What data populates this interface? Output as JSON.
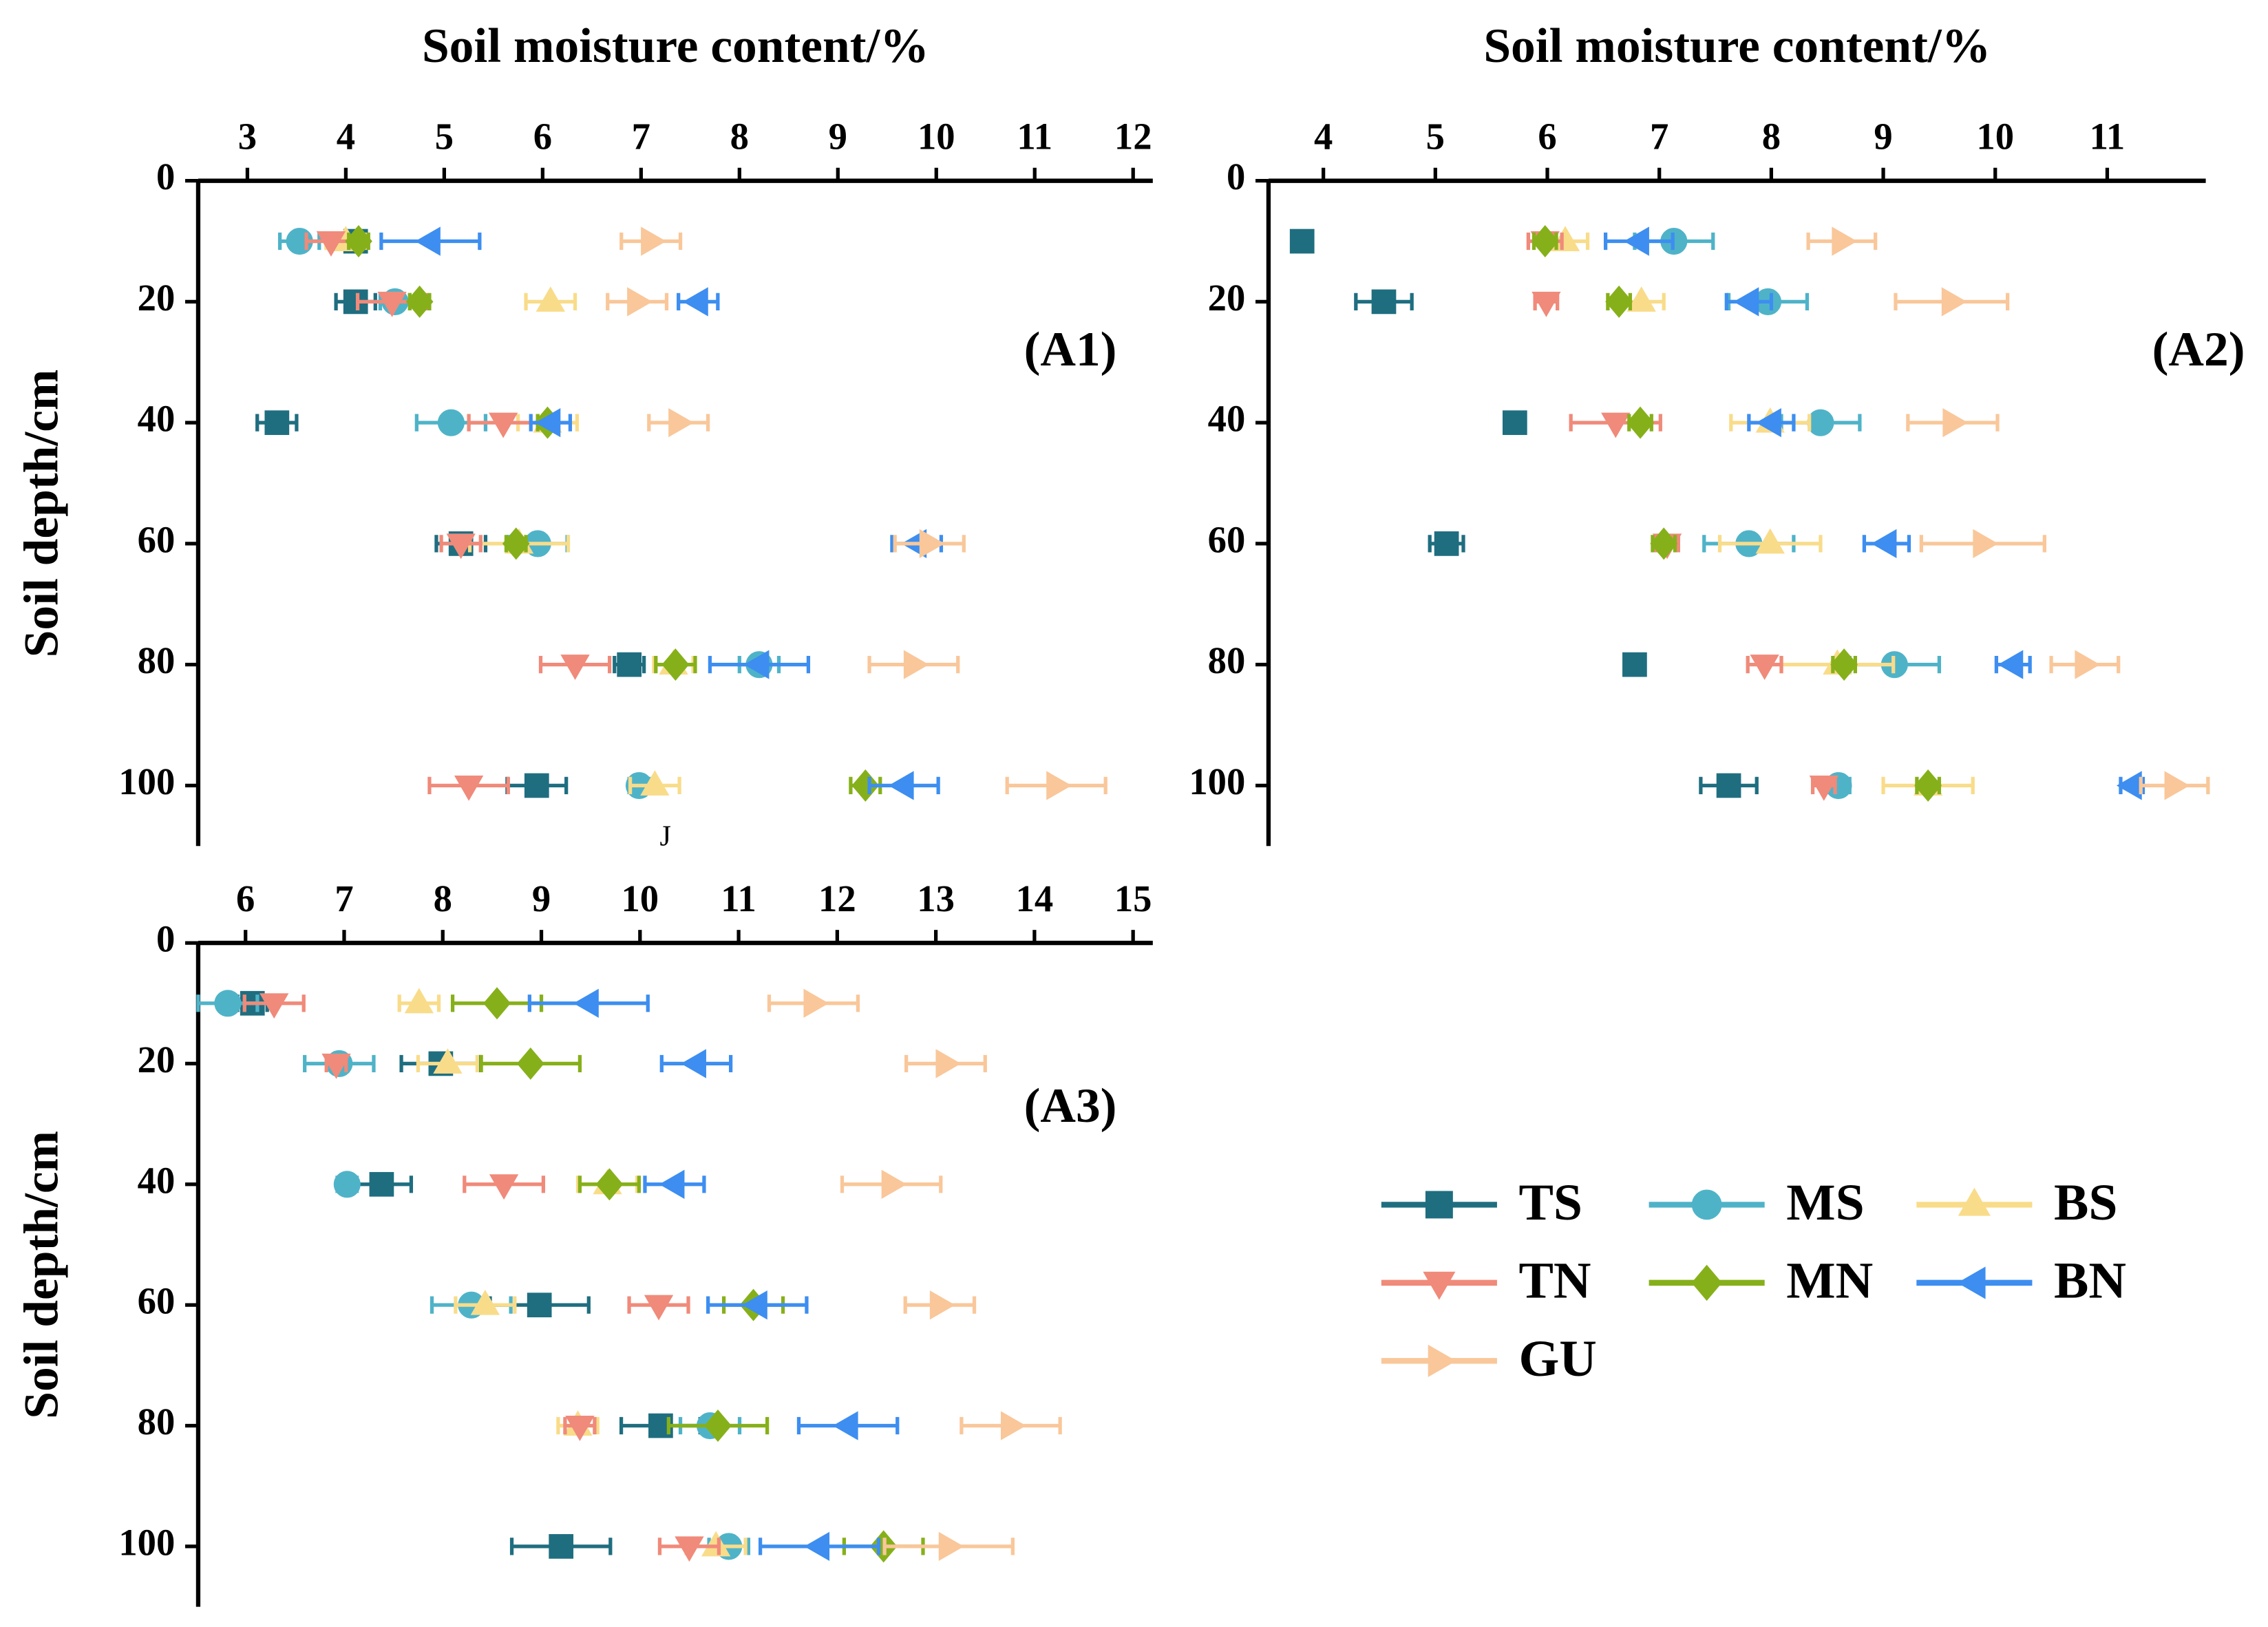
{
  "chart_data": [
    {
      "type": "line",
      "panel_label": "(A1)",
      "xlabel": "Soil moisture content/%",
      "ylabel": "Soil depth/cm",
      "annotation": "J",
      "y": [
        10,
        20,
        40,
        60,
        80,
        100
      ],
      "ylim": [
        0,
        110
      ],
      "yticks": [
        0,
        20,
        40,
        60,
        80,
        100
      ],
      "y_inverted": true,
      "xlim": [
        2.5,
        12.2
      ],
      "xticks": [
        3,
        4,
        5,
        6,
        7,
        8,
        9,
        10,
        11,
        12
      ],
      "xaxis_position": "top",
      "series": [
        {
          "name": "TS",
          "color": "#1f6e80",
          "marker": "square",
          "values": [
            4.1,
            4.1,
            3.3,
            5.17,
            6.88,
            5.94
          ],
          "errors": [
            0.1,
            0.2,
            0.2,
            0.25,
            0.15,
            0.3
          ]
        },
        {
          "name": "MS",
          "color": "#4fb3c8",
          "marker": "circle",
          "values": [
            3.53,
            4.5,
            5.07,
            5.95,
            8.2,
            6.98
          ],
          "errors": [
            0.2,
            0.15,
            0.35,
            0.3,
            0.2,
            0.1
          ]
        },
        {
          "name": "BS",
          "color": "#f9dc8a",
          "marker": "triangle-up",
          "values": [
            4.0,
            6.08,
            6.05,
            5.76,
            7.33,
            7.14
          ],
          "errors": [
            0.2,
            0.25,
            0.3,
            0.5,
            0.2,
            0.25
          ]
        },
        {
          "name": "TN",
          "color": "#f08a7a",
          "marker": "triangle-down",
          "values": [
            3.85,
            4.47,
            5.6,
            5.17,
            6.33,
            5.25
          ],
          "errors": [
            0.25,
            0.35,
            0.35,
            0.2,
            0.35,
            0.4
          ]
        },
        {
          "name": "MN",
          "color": "#86b01a",
          "marker": "diamond",
          "values": [
            4.13,
            4.75,
            6.05,
            5.73,
            7.35,
            9.28
          ],
          "errors": [
            0.1,
            0.1,
            0.1,
            0.1,
            0.2,
            0.15
          ]
        },
        {
          "name": "BN",
          "color": "#3d8ef0",
          "marker": "triangle-left",
          "values": [
            4.86,
            7.58,
            6.08,
            9.8,
            8.2,
            9.67
          ],
          "errors": [
            0.5,
            0.2,
            0.2,
            0.25,
            0.5,
            0.35
          ]
        },
        {
          "name": "GU",
          "color": "#f9c79a",
          "marker": "triangle-right",
          "values": [
            7.1,
            6.96,
            7.38,
            9.93,
            9.77,
            11.22
          ],
          "errors": [
            0.3,
            0.3,
            0.3,
            0.35,
            0.45,
            0.5
          ]
        }
      ]
    },
    {
      "type": "line",
      "panel_label": "(A2)",
      "xlabel": "Soil moisture content/%",
      "y": [
        10,
        20,
        40,
        60,
        80,
        100
      ],
      "ylim": [
        0,
        110
      ],
      "yticks": [
        0,
        20,
        40,
        60,
        80,
        100
      ],
      "y_inverted": true,
      "xlim": [
        3.51,
        11.88
      ],
      "xticks": [
        4,
        5,
        6,
        7,
        8,
        9,
        10,
        11
      ],
      "xaxis_position": "top",
      "series": [
        {
          "name": "TS",
          "color": "#1f6e80",
          "marker": "square",
          "values": [
            3.81,
            4.54,
            5.71,
            5.1,
            6.78,
            7.62
          ],
          "errors": [
            0.05,
            0.25,
            0.05,
            0.15,
            0.05,
            0.25
          ]
        },
        {
          "name": "MS",
          "color": "#4fb3c8",
          "marker": "circle",
          "values": [
            7.13,
            7.97,
            8.44,
            7.8,
            9.1,
            8.6
          ],
          "errors": [
            0.35,
            0.35,
            0.35,
            0.4,
            0.4,
            0.1
          ]
        },
        {
          "name": "BS",
          "color": "#f9dc8a",
          "marker": "triangle-up",
          "values": [
            6.16,
            6.84,
            7.99,
            7.99,
            8.59,
            9.4
          ],
          "errors": [
            0.2,
            0.2,
            0.35,
            0.45,
            0.5,
            0.4
          ]
        },
        {
          "name": "TN",
          "color": "#f08a7a",
          "marker": "triangle-down",
          "values": [
            5.98,
            5.99,
            6.61,
            7.07,
            7.94,
            8.47
          ],
          "errors": [
            0.15,
            0.1,
            0.4,
            0.1,
            0.15,
            0.1
          ]
        },
        {
          "name": "MN",
          "color": "#86b01a",
          "marker": "diamond",
          "values": [
            5.98,
            6.64,
            6.83,
            7.04,
            8.65,
            9.4
          ],
          "errors": [
            0.1,
            0.1,
            0.1,
            0.1,
            0.1,
            0.1
          ]
        },
        {
          "name": "BN",
          "color": "#3d8ef0",
          "marker": "triangle-left",
          "values": [
            6.82,
            7.8,
            8.0,
            9.03,
            10.16,
            11.22
          ],
          "errors": [
            0.3,
            0.2,
            0.2,
            0.2,
            0.15,
            0.1
          ]
        },
        {
          "name": "GU",
          "color": "#f9c79a",
          "marker": "triangle-right",
          "values": [
            8.63,
            9.61,
            9.62,
            9.89,
            10.8,
            11.6
          ],
          "errors": [
            0.3,
            0.5,
            0.4,
            0.55,
            0.3,
            0.3
          ]
        }
      ]
    },
    {
      "type": "line",
      "panel_label": "(A3)",
      "ylabel": "Soil depth/cm",
      "y": [
        10,
        20,
        40,
        60,
        80,
        100
      ],
      "ylim": [
        0,
        110
      ],
      "yticks": [
        0,
        20,
        40,
        60,
        80,
        100
      ],
      "y_inverted": true,
      "xlim": [
        5.52,
        15.2
      ],
      "xticks": [
        6,
        7,
        8,
        9,
        10,
        11,
        12,
        13,
        14,
        15
      ],
      "xaxis_position": "top",
      "series": [
        {
          "name": "TS",
          "color": "#1f6e80",
          "marker": "square",
          "values": [
            6.07,
            7.98,
            7.38,
            8.98,
            10.21,
            9.2
          ],
          "errors": [
            0.15,
            0.4,
            0.3,
            0.5,
            0.4,
            0.5
          ]
        },
        {
          "name": "MS",
          "color": "#4fb3c8",
          "marker": "circle",
          "values": [
            5.82,
            6.95,
            7.03,
            8.29,
            10.71,
            10.9
          ],
          "errors": [
            0.3,
            0.35,
            0.1,
            0.4,
            0.3,
            0.2
          ]
        },
        {
          "name": "BS",
          "color": "#f9dc8a",
          "marker": "triangle-up",
          "values": [
            7.76,
            8.05,
            9.67,
            8.43,
            9.37,
            10.77
          ],
          "errors": [
            0.2,
            0.3,
            0.3,
            0.3,
            0.2,
            0.3
          ]
        },
        {
          "name": "TN",
          "color": "#f08a7a",
          "marker": "triangle-down",
          "values": [
            6.29,
            6.92,
            8.62,
            10.19,
            9.39,
            10.5
          ],
          "errors": [
            0.3,
            0.1,
            0.4,
            0.3,
            0.15,
            0.3
          ]
        },
        {
          "name": "MN",
          "color": "#86b01a",
          "marker": "diamond",
          "values": [
            8.55,
            8.89,
            9.69,
            11.15,
            10.79,
            12.47
          ],
          "errors": [
            0.45,
            0.5,
            0.3,
            0.3,
            0.5,
            0.4
          ]
        },
        {
          "name": "BN",
          "color": "#3d8ef0",
          "marker": "triangle-left",
          "values": [
            9.48,
            10.57,
            10.35,
            11.19,
            12.11,
            11.82
          ],
          "errors": [
            0.6,
            0.35,
            0.3,
            0.5,
            0.5,
            0.6
          ]
        },
        {
          "name": "GU",
          "color": "#f9c79a",
          "marker": "triangle-right",
          "values": [
            11.76,
            13.1,
            12.55,
            13.04,
            13.76,
            13.13
          ],
          "errors": [
            0.45,
            0.4,
            0.5,
            0.35,
            0.5,
            0.65
          ]
        }
      ]
    }
  ]
}
